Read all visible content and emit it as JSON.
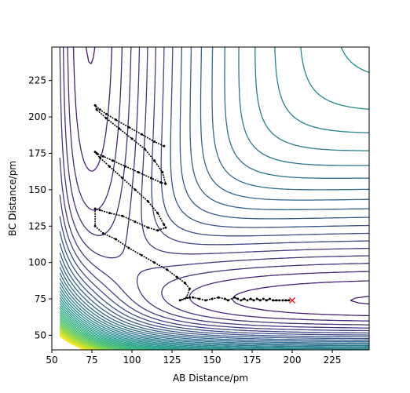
{
  "chart_data": {
    "type": "line",
    "title": "",
    "xlabel": "AB Distance/pm",
    "ylabel": "BC Distance/pm",
    "xlim": [
      50,
      248
    ],
    "ylim": [
      40,
      248
    ],
    "xticks": [
      50,
      75,
      100,
      125,
      150,
      175,
      200,
      225
    ],
    "yticks": [
      50,
      75,
      100,
      125,
      150,
      175,
      200,
      225
    ],
    "grid": false,
    "legend": "none",
    "background": "contour map of potential energy surface (viridis colormap, ~45 levels, yellow at repulsive wall / high energy, dark purple in reactant and product valleys)",
    "colors": {
      "trajectory": "#000000",
      "end_marker": "#ff0000",
      "contour_low": "#440154",
      "contour_high": "#fde725"
    },
    "series": [
      {
        "type": "trajectory",
        "x": [
          120,
          114,
          106,
          98,
          90,
          84,
          80,
          77,
          78,
          84,
          92,
          100,
          108,
          114,
          119,
          121,
          118,
          112,
          104,
          96,
          88,
          82,
          78,
          77,
          80,
          86,
          94,
          102,
          110,
          116,
          120,
          121,
          116,
          110,
          102,
          94,
          86,
          80,
          77,
          77,
          82,
          90,
          98,
          106,
          114,
          122,
          128,
          133,
          136,
          134,
          130,
          136,
          138,
          142,
          146,
          150,
          154,
          158,
          160,
          164,
          166,
          168,
          170,
          172,
          174,
          176,
          178,
          180,
          182,
          184,
          186,
          188,
          190,
          192,
          194,
          196,
          198
        ],
        "y": [
          180,
          183,
          188,
          193,
          198,
          202,
          205,
          208,
          205,
          199,
          192,
          185,
          178,
          170,
          162,
          154,
          155,
          158,
          162,
          166,
          170,
          173,
          175,
          176,
          172,
          166,
          158,
          150,
          142,
          134,
          126,
          124,
          122,
          124,
          128,
          132,
          134,
          136,
          137,
          125,
          120,
          116,
          110,
          105,
          100,
          95,
          90,
          86,
          82,
          76,
          74,
          76,
          76,
          75,
          74,
          75,
          76,
          75,
          74,
          76,
          75,
          74,
          75,
          74,
          75,
          74,
          75,
          74,
          75,
          74,
          75,
          74,
          74,
          74,
          74,
          74,
          74
        ]
      },
      {
        "type": "end-marker",
        "x": [
          200
        ],
        "y": [
          74
        ]
      }
    ]
  }
}
